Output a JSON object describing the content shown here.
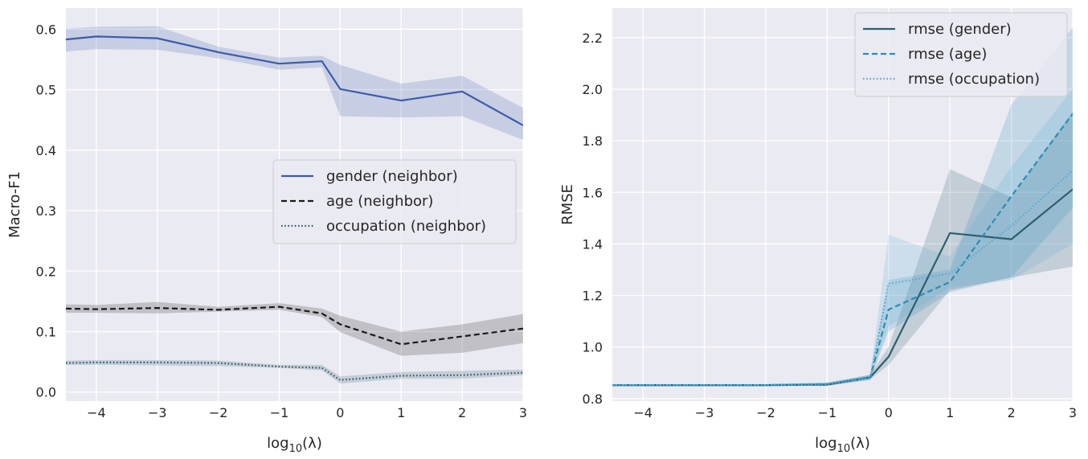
{
  "chart_data": [
    {
      "type": "line",
      "title": "",
      "xlabel_prefix": "log",
      "xlabel_sub": "10",
      "xlabel_suffix": "(λ)",
      "ylabel": "Macro-F1",
      "xlim": [
        -4.5,
        3
      ],
      "ylim": [
        -0.015,
        0.635
      ],
      "xticks": [
        -4,
        -3,
        -2,
        -1,
        0,
        1,
        2,
        3
      ],
      "xtick_labels": [
        "−4",
        "−3",
        "−2",
        "−1",
        "0",
        "1",
        "2",
        "3"
      ],
      "yticks": [
        0.0,
        0.1,
        0.2,
        0.3,
        0.4,
        0.5,
        0.6
      ],
      "ytick_labels": [
        "0.0",
        "0.1",
        "0.2",
        "0.3",
        "0.4",
        "0.5",
        "0.6"
      ],
      "legend_position": "center-right",
      "x": [
        -4.5,
        -4,
        -3,
        -2,
        -1,
        -0.3,
        0,
        1,
        2,
        3
      ],
      "series": [
        {
          "name": "gender (neighbor)",
          "color": "#3b5ca8",
          "dash": "solid",
          "values": [
            0.583,
            0.588,
            0.585,
            0.562,
            0.543,
            0.547,
            0.501,
            0.482,
            0.497,
            0.441
          ],
          "lower": [
            0.563,
            0.567,
            0.566,
            0.552,
            0.533,
            0.537,
            0.456,
            0.454,
            0.456,
            0.417
          ],
          "upper": [
            0.601,
            0.604,
            0.605,
            0.571,
            0.553,
            0.556,
            0.541,
            0.51,
            0.523,
            0.47
          ]
        },
        {
          "name": "age (neighbor)",
          "color": "#1a1a1a",
          "dash": "dashed",
          "values": [
            0.138,
            0.137,
            0.139,
            0.136,
            0.141,
            0.13,
            0.112,
            0.079,
            0.092,
            0.105
          ],
          "lower": [
            0.131,
            0.131,
            0.13,
            0.133,
            0.136,
            0.124,
            0.099,
            0.06,
            0.065,
            0.081
          ],
          "upper": [
            0.145,
            0.144,
            0.149,
            0.141,
            0.147,
            0.138,
            0.126,
            0.1,
            0.112,
            0.129
          ]
        },
        {
          "name": "occupation (neighbor)",
          "color": "#2e5a6b",
          "dash": "dotted",
          "values": [
            0.048,
            0.049,
            0.049,
            0.048,
            0.042,
            0.04,
            0.02,
            0.027,
            0.028,
            0.032
          ],
          "lower": [
            0.045,
            0.045,
            0.044,
            0.043,
            0.04,
            0.036,
            0.014,
            0.022,
            0.022,
            0.028
          ],
          "upper": [
            0.052,
            0.053,
            0.053,
            0.052,
            0.045,
            0.045,
            0.026,
            0.033,
            0.035,
            0.037
          ]
        }
      ]
    },
    {
      "type": "line",
      "title": "",
      "xlabel_prefix": "log",
      "xlabel_sub": "10",
      "xlabel_suffix": "(λ)",
      "ylabel": "RMSE",
      "xlim": [
        -4.5,
        3
      ],
      "ylim": [
        0.79,
        2.315
      ],
      "xticks": [
        -4,
        -3,
        -2,
        -1,
        0,
        1,
        2,
        3
      ],
      "xtick_labels": [
        "−4",
        "−3",
        "−2",
        "−1",
        "0",
        "1",
        "2",
        "3"
      ],
      "yticks": [
        0.8,
        1.0,
        1.2,
        1.4,
        1.6,
        1.8,
        2.0,
        2.2
      ],
      "ytick_labels": [
        "0.8",
        "1.0",
        "1.2",
        "1.4",
        "1.6",
        "1.8",
        "2.0",
        "2.2"
      ],
      "legend_position": "upper-right",
      "x": [
        -4.5,
        -4,
        -3,
        -2,
        -1,
        -0.3,
        0,
        1,
        2,
        3
      ],
      "series": [
        {
          "name": "rmse (gender)",
          "color": "#2d5f6e",
          "dash": "solid",
          "values": [
            0.852,
            0.852,
            0.852,
            0.852,
            0.854,
            0.882,
            0.962,
            1.442,
            1.418,
            1.612
          ],
          "lower": [
            0.848,
            0.848,
            0.848,
            0.848,
            0.85,
            0.874,
            0.93,
            1.22,
            1.27,
            1.312
          ],
          "upper": [
            0.856,
            0.856,
            0.856,
            0.856,
            0.86,
            0.892,
            1.0,
            1.69,
            1.58,
            1.912
          ]
        },
        {
          "name": "rmse (age)",
          "color": "#2b8cb5",
          "dash": "dashed",
          "values": [
            0.852,
            0.852,
            0.852,
            0.852,
            0.856,
            0.882,
            1.145,
            1.252,
            1.585,
            1.905
          ],
          "lower": [
            0.848,
            0.848,
            0.848,
            0.848,
            0.85,
            0.872,
            1.06,
            1.212,
            1.27,
            1.54
          ],
          "upper": [
            0.856,
            0.856,
            0.856,
            0.856,
            0.862,
            0.892,
            1.26,
            1.3,
            1.94,
            2.24
          ]
        },
        {
          "name": "rmse (occupation)",
          "color": "#5aa9d0",
          "dash": "dotted",
          "values": [
            0.852,
            0.852,
            0.852,
            0.852,
            0.856,
            0.88,
            1.245,
            1.285,
            1.47,
            1.685
          ],
          "lower": [
            0.848,
            0.848,
            0.848,
            0.848,
            0.85,
            0.872,
            1.08,
            1.23,
            1.26,
            1.4
          ],
          "upper": [
            0.856,
            0.856,
            0.856,
            0.856,
            0.862,
            0.89,
            1.435,
            1.35,
            1.7,
            2.0
          ]
        }
      ]
    }
  ]
}
